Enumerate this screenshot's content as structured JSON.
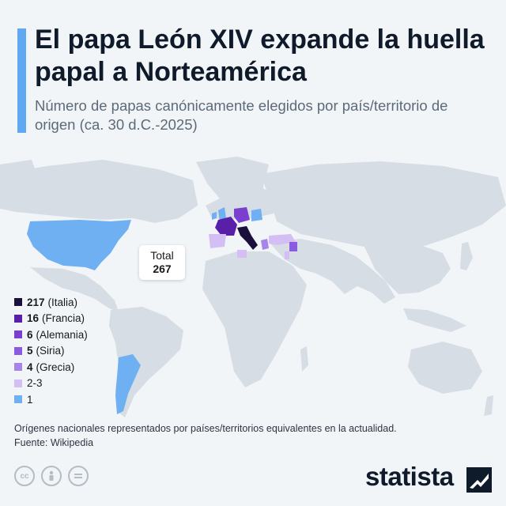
{
  "header": {
    "title": "El papa León XIV expande la huella papal a Norteamérica",
    "subtitle": "Número de papas canónicamente elegidos por país/territorio de origen (ca. 30 d.C.-2025)"
  },
  "total": {
    "label": "Total",
    "value": "267"
  },
  "legend": [
    {
      "count": "217",
      "label": "(Italia)",
      "color": "#1b0f3b"
    },
    {
      "count": "16",
      "label": "(Francia)",
      "color": "#5a1fa8"
    },
    {
      "count": "6",
      "label": "(Alemania)",
      "color": "#7b3fd0"
    },
    {
      "count": "5",
      "label": "(Siria)",
      "color": "#8a5ae0"
    },
    {
      "count": "4",
      "label": "(Grecia)",
      "color": "#a883ea"
    },
    {
      "count": "",
      "label": "2-3",
      "color": "#d3bff3"
    },
    {
      "count": "",
      "label": "1",
      "color": "#6eb0f2"
    }
  ],
  "map_colors": {
    "land": "#d6dde4",
    "ocean": "#f2f5f8"
  },
  "footer": {
    "note": "Orígenes nacionales representados por países/territorios equivalentes en la actualidad.",
    "source": "Fuente: Wikipedia",
    "brand": "statista"
  }
}
